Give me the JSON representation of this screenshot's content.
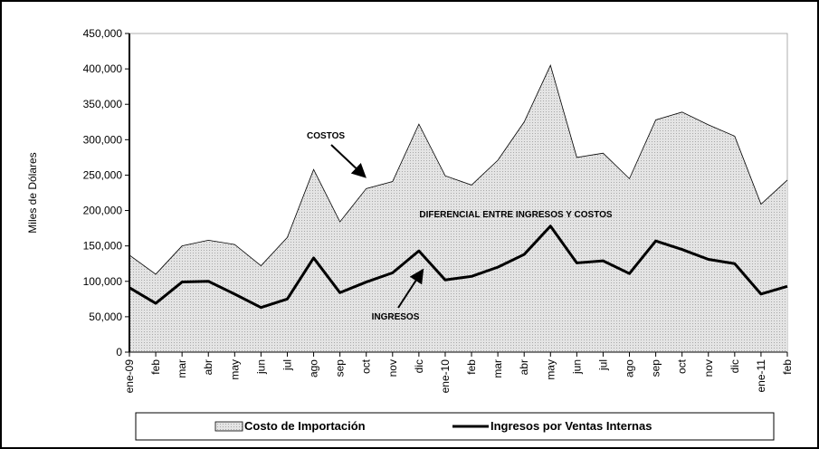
{
  "chart_data": {
    "type": "area-line",
    "y_label": "Miles de Dólares",
    "categories": [
      "ene-09",
      "feb",
      "mar",
      "abr",
      "may",
      "jun",
      "jul",
      "ago",
      "sep",
      "oct",
      "nov",
      "dic",
      "ene-10",
      "feb",
      "mar",
      "abr",
      "may",
      "jun",
      "jul",
      "ago",
      "sep",
      "oct",
      "nov",
      "dic",
      "ene-11",
      "feb"
    ],
    "series": [
      {
        "name": "Costo de Importación",
        "kind": "area",
        "color": "#d0d0d0",
        "values": [
          137000,
          110000,
          150000,
          158000,
          152000,
          122000,
          162000,
          258000,
          184000,
          231000,
          241000,
          322000,
          249000,
          236000,
          271000,
          325000,
          405000,
          275000,
          281000,
          245000,
          328000,
          339000,
          321000,
          305000,
          209000,
          243000
        ]
      },
      {
        "name": "Ingresos por Ventas Internas",
        "kind": "line",
        "color": "#000000",
        "values": [
          91000,
          69000,
          99000,
          100000,
          82000,
          63000,
          75000,
          133000,
          84000,
          99000,
          112000,
          143000,
          102000,
          107000,
          120000,
          138000,
          178000,
          126000,
          129000,
          111000,
          157000,
          145000,
          131000,
          125000,
          82000,
          93000
        ]
      }
    ],
    "ylim": [
      0,
      450000
    ],
    "yticks": [
      0,
      {
        "value": 50000,
        "label": "50,000"
      },
      {
        "value": 100000,
        "label": "100,000"
      },
      {
        "value": 150000,
        "label": "150,000"
      },
      {
        "value": 200000,
        "label": "200,000"
      },
      {
        "value": 250000,
        "label": "250,000"
      },
      {
        "value": 300000,
        "label": "300,000"
      },
      {
        "value": 350000,
        "label": "350,000"
      },
      {
        "value": 400000,
        "label": "400,000"
      },
      {
        "value": 450000,
        "label": "450,000"
      }
    ],
    "annotations": [
      "COSTOS",
      "DIFERENCIAL ENTRE INGRESOS Y COSTOS",
      "INGRESOS"
    ]
  }
}
